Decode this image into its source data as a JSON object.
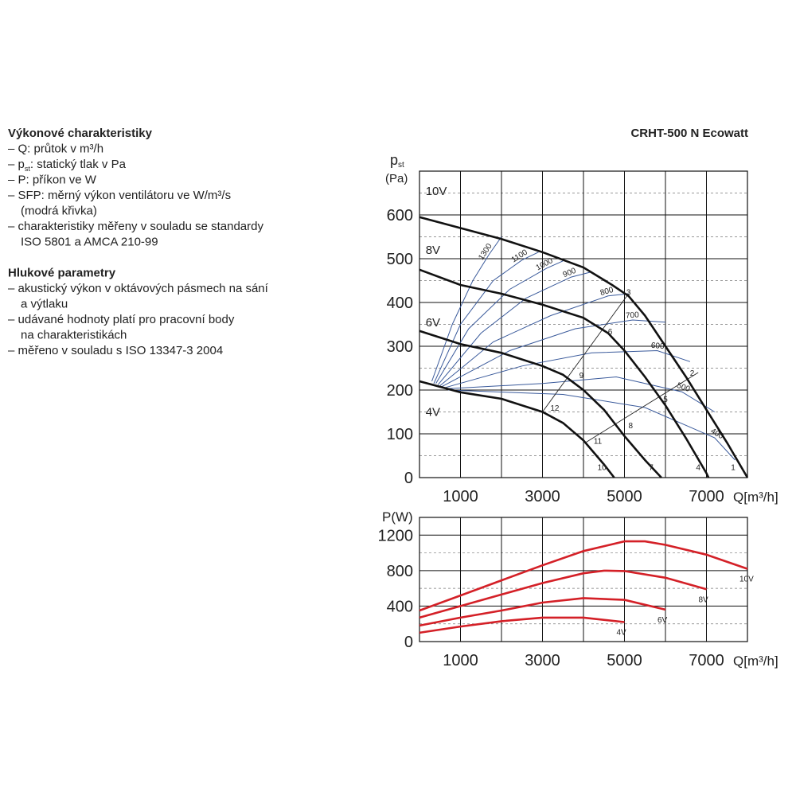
{
  "text_block": {
    "sections": [
      {
        "heading": "Výkonové charakteristiky",
        "items": [
          [
            "– Q: průtok v m³/h"
          ],
          [
            {
              "p": "– p",
              "sub": "st",
              "rest": ": statický tlak v Pa"
            }
          ],
          [
            "– P: příkon ve W"
          ],
          [
            "– SFP: měrný výkon ventilátoru ve W/m³/s",
            "(modrá křivka)"
          ],
          [
            "– charakteristiky měřeny v souladu se standardy",
            "ISO 5801 a AMCA 210-99"
          ]
        ]
      },
      {
        "heading": "Hlukové parametry",
        "items": [
          [
            "– akustický výkon v oktávových pásmech na sání",
            "a výtlaku"
          ],
          [
            "– udávané hodnoty platí pro pracovní body",
            "na charakteristikách"
          ],
          [
            "– měřeno v souladu s ISO 13347-3 2004"
          ]
        ]
      }
    ]
  },
  "model": "CRHT-500 N Ecowatt",
  "chart_data": [
    {
      "type": "line",
      "ylabel": "p",
      "ylabel_sub": "st",
      "yunit": "(Pa)",
      "xlabel": "Q[m³/h]",
      "xlim": [
        0,
        8000
      ],
      "ylim": [
        0,
        700
      ],
      "xticks": [
        1000,
        3000,
        5000,
        7000
      ],
      "yticks": [
        0,
        100,
        200,
        300,
        400,
        500,
        600
      ],
      "xgrid": [
        0,
        2000,
        4000,
        6000,
        8000
      ],
      "ygrid_minor": [
        50,
        150,
        250,
        350,
        450,
        550,
        650
      ],
      "series": [
        {
          "name": "10V",
          "color": "#111111",
          "x": [
            0,
            1000,
            2000,
            3000,
            4000,
            4700,
            5100,
            5500,
            6000,
            6500,
            7000,
            7500,
            8000
          ],
          "values": [
            595,
            570,
            545,
            515,
            480,
            440,
            415,
            370,
            300,
            230,
            155,
            80,
            0
          ]
        },
        {
          "name": "8V",
          "color": "#111111",
          "x": [
            0,
            1000,
            2000,
            3000,
            4000,
            4600,
            5000,
            5500,
            6000,
            6500,
            7000,
            7050
          ],
          "values": [
            475,
            440,
            420,
            395,
            365,
            330,
            290,
            230,
            165,
            90,
            10,
            0
          ]
        },
        {
          "name": "6V",
          "color": "#111111",
          "x": [
            0,
            1000,
            2000,
            3000,
            3500,
            4000,
            4500,
            5000,
            5500,
            5900
          ],
          "values": [
            335,
            305,
            285,
            255,
            235,
            200,
            155,
            95,
            40,
            0
          ]
        },
        {
          "name": "4V",
          "color": "#111111",
          "x": [
            0,
            1000,
            2000,
            3000,
            3500,
            4000,
            4500,
            4750
          ],
          "values": [
            220,
            195,
            180,
            150,
            125,
            85,
            30,
            0
          ]
        }
      ],
      "sfp_series": [
        {
          "name": "1300",
          "color": "#3a5a9b",
          "x": [
            300,
            800,
            1300,
            1700,
            2000
          ],
          "values": [
            220,
            350,
            450,
            510,
            550
          ]
        },
        {
          "name": "1100",
          "color": "#3a5a9b",
          "x": [
            350,
            1000,
            1800,
            2500,
            2900
          ],
          "values": [
            215,
            350,
            450,
            497,
            515
          ]
        },
        {
          "name": "1000",
          "color": "#3a5a9b",
          "x": [
            400,
            1200,
            2200,
            3100,
            3500
          ],
          "values": [
            215,
            340,
            430,
            478,
            495
          ]
        },
        {
          "name": "900",
          "color": "#3a5a9b",
          "x": [
            450,
            1500,
            2600,
            3700,
            4200
          ],
          "values": [
            212,
            330,
            410,
            458,
            470
          ]
        },
        {
          "name": "800",
          "color": "#3a5a9b",
          "x": [
            500,
            1800,
            3200,
            4600,
            5100
          ],
          "values": [
            210,
            310,
            370,
            415,
            420
          ]
        },
        {
          "name": "700",
          "color": "#3a5a9b",
          "x": [
            550,
            2200,
            3800,
            5200,
            6000
          ],
          "values": [
            208,
            290,
            340,
            360,
            355
          ]
        },
        {
          "name": "600",
          "color": "#3a5a9b",
          "x": [
            600,
            2500,
            4200,
            5800,
            6600
          ],
          "values": [
            205,
            255,
            285,
            290,
            265
          ]
        },
        {
          "name": "500",
          "color": "#3a5a9b",
          "x": [
            650,
            3000,
            4800,
            6400,
            7200
          ],
          "values": [
            203,
            215,
            230,
            196,
            150
          ]
        },
        {
          "name": "400",
          "color": "#3a5a9b",
          "x": [
            700,
            3500,
            5500,
            7200,
            7700
          ],
          "values": [
            200,
            190,
            160,
            91,
            40
          ]
        }
      ],
      "system_lines": [
        {
          "x": [
            3000,
            5100
          ],
          "values": [
            150,
            420
          ]
        },
        {
          "x": [
            4050,
            6800
          ],
          "values": [
            80,
            240
          ]
        }
      ],
      "operating_points": {
        "labels": [
          "1",
          "2",
          "3",
          "4",
          "5",
          "6",
          "7",
          "8",
          "9",
          "10",
          "11",
          "12"
        ],
        "x": [
          7650,
          6650,
          5100,
          6800,
          6000,
          4650,
          5650,
          5150,
          3950,
          4450,
          4350,
          3300
        ],
        "values": [
          25,
          240,
          425,
          25,
          180,
          335,
          25,
          120,
          235,
          25,
          85,
          160
        ]
      }
    },
    {
      "type": "line",
      "ylabel": "P(W)",
      "xlabel": "Q[m³/h]",
      "color": "#d42027",
      "xlim": [
        0,
        8000
      ],
      "ylim": [
        0,
        1400
      ],
      "xticks": [
        1000,
        3000,
        5000,
        7000
      ],
      "yticks": [
        0,
        400,
        800,
        1200
      ],
      "xgrid": [
        0,
        2000,
        4000,
        6000,
        8000
      ],
      "ygrid_minor": [
        200,
        600,
        1000
      ],
      "series": [
        {
          "name": "10V",
          "color": "#d42027",
          "x": [
            0,
            1000,
            2000,
            3000,
            4000,
            5000,
            5500,
            6000,
            7000,
            8000
          ],
          "values": [
            350,
            520,
            690,
            860,
            1020,
            1130,
            1130,
            1090,
            980,
            820
          ]
        },
        {
          "name": "8V",
          "color": "#d42027",
          "x": [
            0,
            1000,
            2000,
            3000,
            4000,
            4500,
            5000,
            6000,
            7000
          ],
          "values": [
            270,
            400,
            530,
            660,
            770,
            800,
            795,
            720,
            590
          ]
        },
        {
          "name": "6V",
          "color": "#d42027",
          "x": [
            0,
            1000,
            2000,
            3000,
            4000,
            5000,
            6000
          ],
          "values": [
            180,
            270,
            350,
            440,
            490,
            470,
            360
          ]
        },
        {
          "name": "4V",
          "color": "#d42027",
          "x": [
            0,
            1000,
            2000,
            3000,
            4000,
            5000
          ],
          "values": [
            100,
            170,
            230,
            270,
            270,
            220
          ]
        }
      ]
    }
  ]
}
